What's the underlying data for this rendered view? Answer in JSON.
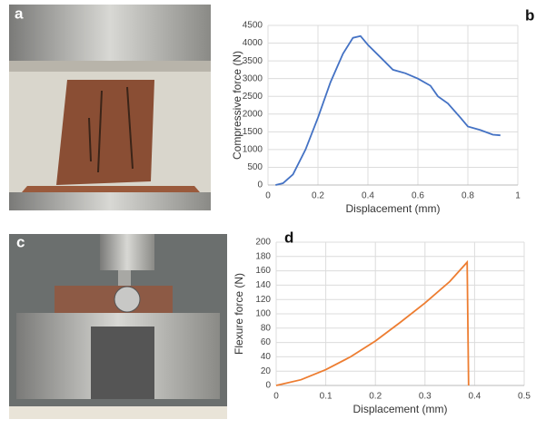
{
  "photos": [
    {
      "label": "a"
    },
    {
      "label": "c"
    }
  ],
  "chart_data": [
    {
      "type": "line",
      "label": "b",
      "xlabel": "Displacement (mm)",
      "ylabel": "Compressive force (N)",
      "color": "#4472c4",
      "grid": true,
      "xlim": [
        0,
        1
      ],
      "xticks": [
        0,
        0.2,
        0.4,
        0.6,
        0.8,
        1
      ],
      "ylim": [
        0,
        4500
      ],
      "yticks": [
        0,
        500,
        1000,
        1500,
        2000,
        2500,
        3000,
        3500,
        4000,
        4500
      ],
      "x": [
        0.03,
        0.06,
        0.1,
        0.15,
        0.2,
        0.25,
        0.3,
        0.34,
        0.37,
        0.4,
        0.45,
        0.5,
        0.55,
        0.6,
        0.65,
        0.68,
        0.72,
        0.77,
        0.8,
        0.85,
        0.9,
        0.93
      ],
      "values": [
        0,
        50,
        300,
        1000,
        1900,
        2900,
        3700,
        4150,
        4200,
        3950,
        3600,
        3250,
        3150,
        3000,
        2800,
        2500,
        2300,
        1900,
        1650,
        1550,
        1420,
        1400
      ]
    },
    {
      "type": "line",
      "label": "d",
      "xlabel": "Displacement (mm)",
      "ylabel": "Flexure force (N)",
      "color": "#ed7d31",
      "grid": true,
      "xlim": [
        0,
        0.5
      ],
      "xticks": [
        0,
        0.1,
        0.2,
        0.3,
        0.4,
        0.5
      ],
      "ylim": [
        0,
        200
      ],
      "yticks": [
        0,
        20,
        40,
        60,
        80,
        100,
        120,
        140,
        160,
        180,
        200
      ],
      "x": [
        0,
        0.05,
        0.1,
        0.15,
        0.2,
        0.25,
        0.3,
        0.35,
        0.385,
        0.388
      ],
      "values": [
        0,
        8,
        22,
        40,
        62,
        88,
        115,
        145,
        172,
        0
      ]
    }
  ]
}
